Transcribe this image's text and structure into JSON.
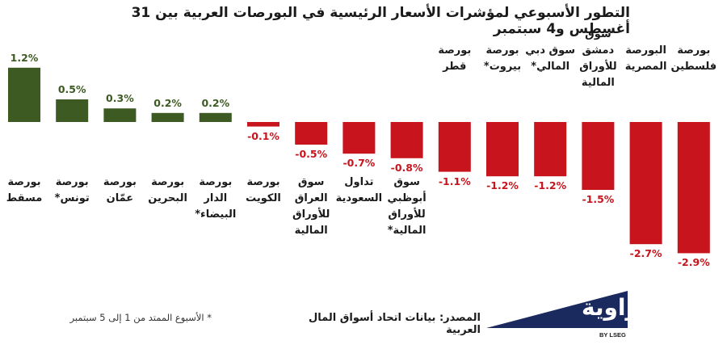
{
  "chart_data": {
    "type": "bar",
    "title": "التطور الأسبوعي لمؤشرات الأسعار الرئيسية في البورصات العربية بين 31 أغسطس و4 سبتمبر",
    "xlabel": "",
    "ylabel": "",
    "ylim": [
      -3.2,
      1.4
    ],
    "grid": false,
    "categories": [
      "بورصة مسقط",
      "بورصة تونس*",
      "بورصة عمّان",
      "بورصة البحرين",
      "بورصة الدار البيضاء*",
      "بورصة الكويت",
      "سوق العراق للأوراق المالية",
      "تداول السعودية",
      "سوق أبوظبي للأوراق المالية*",
      "بورصة قطر",
      "بورصة بيروت*",
      "سوق دبي المالي*",
      "سوق دمشق للأوراق المالية",
      "البورصة المصرية",
      "بورصة فلسطين"
    ],
    "values": [
      1.2,
      0.5,
      0.3,
      0.2,
      0.2,
      -0.1,
      -0.5,
      -0.7,
      -0.8,
      -1.1,
      -1.2,
      -1.2,
      -1.5,
      -2.7,
      -2.9
    ],
    "value_labels": [
      "1.2%",
      "0.5%",
      "0.3%",
      "0.2%",
      "0.2%",
      "-0.1%",
      "-0.5%",
      "-0.7%",
      "-0.8%",
      "-1.1%",
      "-1.2%",
      "-1.2%",
      "-1.5%",
      "-2.7%",
      "-2.9%"
    ],
    "colors": {
      "positive": "#3d5a22",
      "negative": "#c8141c",
      "positive_text": "#3d5a22",
      "negative_text": "#c8141c"
    }
  },
  "source": "المصدر: بيانات اتحاد أسواق المال العربية",
  "footnote": "* الأسبوع الممتد من 1 إلى 5 سبتمبر",
  "logo": {
    "name": "zawya-logo",
    "text": "زاوية",
    "subtitle": "BY LSEG",
    "color": "#1b2a5e"
  }
}
